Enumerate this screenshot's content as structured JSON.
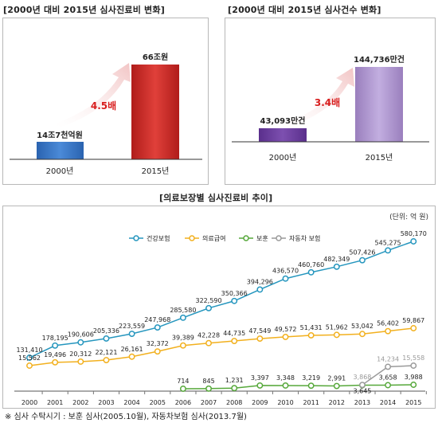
{
  "chart_data": [
    {
      "type": "bar",
      "title": "[2000년 대비 2015년 심사진료비 변화]",
      "categories": [
        "2000년",
        "2015년"
      ],
      "values": [
        14.7,
        66
      ],
      "value_labels": [
        "14조7천억원",
        "66조원"
      ],
      "multiplier_label": "4.5배",
      "colors": [
        "#2f6fbf",
        "#c0201e"
      ]
    },
    {
      "type": "bar",
      "title": "[2000년 대비 2015년 심사건수 변화]",
      "categories": [
        "2000년",
        "2015년"
      ],
      "values": [
        43093,
        144736
      ],
      "value_labels": [
        "43,093만건",
        "144,736만건"
      ],
      "multiplier_label": "3.4배",
      "colors": [
        "#6a3c9c",
        "#a98ec8"
      ]
    },
    {
      "type": "line",
      "title": "[의료보장별 심사진료비 추이]",
      "unit_label": "(단위: 억 원)",
      "x": [
        "2000",
        "2001",
        "2002",
        "2003",
        "2004",
        "2005",
        "2006",
        "2007",
        "2008",
        "2009",
        "2010",
        "2011",
        "2012",
        "2013",
        "2014",
        "2015"
      ],
      "series": [
        {
          "name": "건강보험",
          "color": "#2596be",
          "values": [
            131410,
            178195,
            190606,
            205336,
            223559,
            247968,
            285580,
            322590,
            350366,
            394296,
            436570,
            460760,
            482349,
            507426,
            545275,
            580170
          ],
          "labels": [
            "131,410",
            "178,195",
            "190,606",
            "205,336",
            "223,559",
            "247,968",
            "285,580",
            "322,590",
            "350,366",
            "394,296",
            "436,570",
            "460,760",
            "482,349",
            "507,426",
            "545,275",
            "580,170"
          ]
        },
        {
          "name": "의료급여",
          "color": "#f2b01e",
          "values": [
            15562,
            19496,
            20312,
            22121,
            26161,
            32372,
            39389,
            42228,
            44735,
            47549,
            49572,
            51431,
            51962,
            53042,
            56402,
            59867
          ],
          "labels": [
            "15,562",
            "19,496",
            "20,312",
            "22,121",
            "26,161",
            "32,372",
            "39,389",
            "42,228",
            "44,735",
            "47,549",
            "49,572",
            "51,431",
            "51,962",
            "53,042",
            "56,402",
            "59,867"
          ]
        },
        {
          "name": "보훈",
          "color": "#56a83a",
          "values": [
            null,
            null,
            null,
            null,
            null,
            null,
            714,
            845,
            1231,
            3397,
            3348,
            3219,
            2991,
            3645,
            3658,
            3988
          ],
          "labels": [
            null,
            null,
            null,
            null,
            null,
            null,
            "714",
            "845",
            "1,231",
            "3,397",
            "3,348",
            "3,219",
            "2,991",
            "3,645",
            "3,658",
            "3,988"
          ]
        },
        {
          "name": "자동차 보험",
          "color": "#9a9a9a",
          "values": [
            null,
            null,
            null,
            null,
            null,
            null,
            null,
            null,
            null,
            null,
            null,
            null,
            null,
            3868,
            14234,
            15558
          ],
          "labels": [
            null,
            null,
            null,
            null,
            null,
            null,
            null,
            null,
            null,
            null,
            null,
            null,
            null,
            "3,868",
            "14,234",
            "15,558"
          ]
        }
      ],
      "footnote": "※ 심사 수탁시기 : 보훈 심사(2005.10월), 자동차보험 심사(2013.7월)"
    }
  ]
}
